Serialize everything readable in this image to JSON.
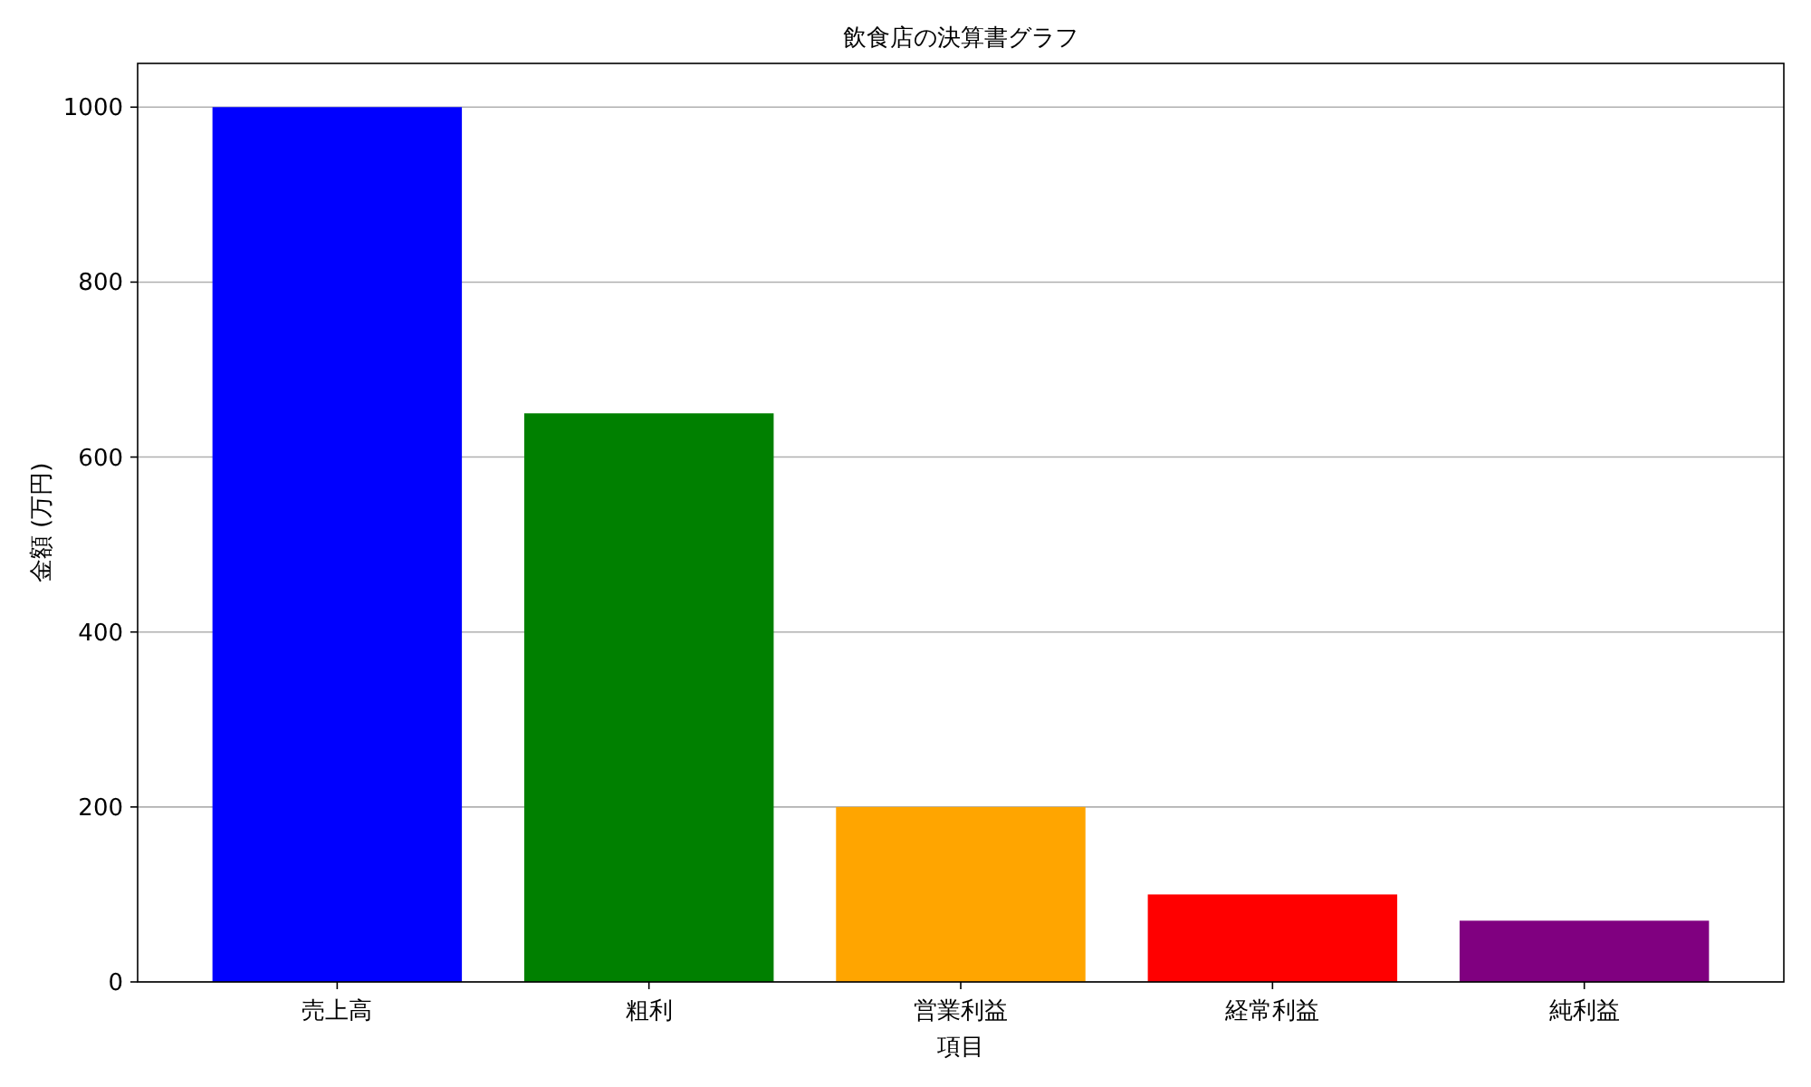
{
  "chart_data": {
    "type": "bar",
    "title": "飲食店の決算書グラフ",
    "xlabel": "項目",
    "ylabel": "金額 (万円)",
    "categories": [
      "売上高",
      "粗利",
      "営業利益",
      "経常利益",
      "純利益"
    ],
    "values": [
      1000,
      650,
      200,
      100,
      70
    ],
    "colors": [
      "#0000ff",
      "#008000",
      "#ffa500",
      "#ff0000",
      "#800080"
    ],
    "ylim": [
      0,
      1050
    ],
    "yticks": [
      0,
      200,
      400,
      600,
      800,
      1000
    ],
    "grid": "y"
  }
}
